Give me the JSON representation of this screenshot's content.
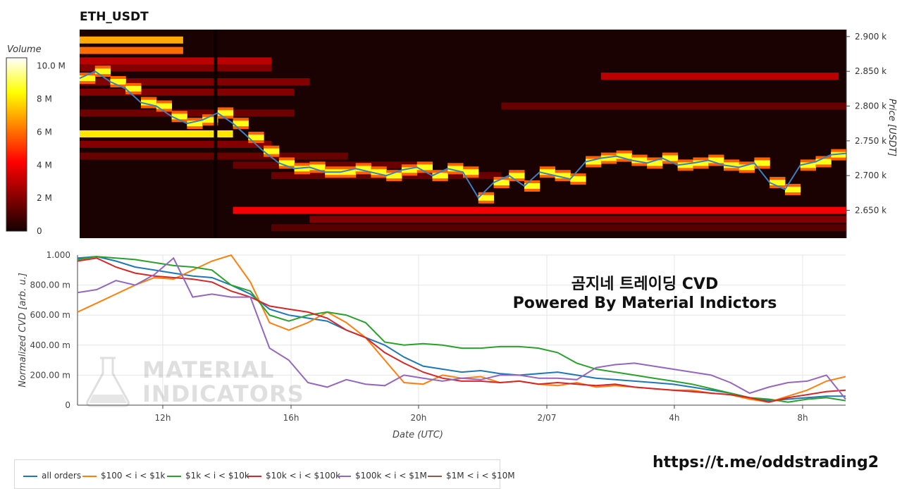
{
  "title": "ETH_USDT",
  "colorbar": {
    "title": "Volume",
    "ticks": [
      "10.0 M",
      "8 M",
      "6 M",
      "4 M",
      "2 M",
      "0"
    ]
  },
  "overlay": {
    "title": "곰지네 트레이딩 CVD",
    "subtitle": "Powered By Material Indictors"
  },
  "watermark": {
    "line1": "MATERIAL",
    "line2": "INDICATORS"
  },
  "link": "https://t.me/oddstrading2",
  "legend": [
    {
      "label": "all orders",
      "color": "#1f77b4"
    },
    {
      "label": "$100 < i < $1k",
      "color": "#ff7f0e"
    },
    {
      "label": "$1k < i < $10k",
      "color": "#2ca02c"
    },
    {
      "label": "$10k < i < $100k",
      "color": "#d62728"
    },
    {
      "label": "$100k < i < $1M",
      "color": "#9467bd"
    },
    {
      "label": "$1M < i < $10M",
      "color": "#8c564b"
    }
  ],
  "chart_data": [
    {
      "type": "heatmap",
      "title": "ETH_USDT",
      "ylabel": "Price [USDT]",
      "ylim": [
        2610,
        2910
      ],
      "y_ticks": [
        "2.900 k",
        "2.850 k",
        "2.800 k",
        "2.750 k",
        "2.700 k",
        "2.650 k"
      ],
      "colorscale": "hot",
      "zlim": [
        0,
        10.5
      ],
      "zunit": "M",
      "bands": [
        {
          "price": 2895,
          "from": 0.0,
          "to": 0.135,
          "level": 7
        },
        {
          "price": 2880,
          "from": 0.0,
          "to": 0.135,
          "level": 6
        },
        {
          "price": 2865,
          "from": 0.0,
          "to": 0.25,
          "level": 3
        },
        {
          "price": 2855,
          "from": 0.0,
          "to": 0.25,
          "level": 2
        },
        {
          "price": 2843,
          "from": 0.68,
          "to": 0.99,
          "level": 3
        },
        {
          "price": 2835,
          "from": 0.0,
          "to": 0.3,
          "level": 2
        },
        {
          "price": 2820,
          "from": 0.0,
          "to": 0.28,
          "level": 2
        },
        {
          "price": 2800,
          "from": 0.55,
          "to": 1.0,
          "level": 1.5
        },
        {
          "price": 2790,
          "from": 0.0,
          "to": 0.28,
          "level": 1.6
        },
        {
          "price": 2760,
          "from": 0.0,
          "to": 0.2,
          "level": 8
        },
        {
          "price": 2745,
          "from": 0.0,
          "to": 0.25,
          "level": 2
        },
        {
          "price": 2728,
          "from": 0.0,
          "to": 0.35,
          "level": 1.5
        },
        {
          "price": 2715,
          "from": 0.2,
          "to": 0.45,
          "level": 1.5
        },
        {
          "price": 2700,
          "from": 0.25,
          "to": 0.55,
          "level": 1.5
        },
        {
          "price": 2650,
          "from": 0.2,
          "to": 1.0,
          "level": 4
        },
        {
          "price": 2637,
          "from": 0.3,
          "to": 1.0,
          "level": 2
        },
        {
          "price": 2625,
          "from": 0.25,
          "to": 1.0,
          "level": 1.2
        }
      ],
      "series": [
        {
          "name": "price",
          "x_frac": [
            0.0,
            0.02,
            0.04,
            0.06,
            0.08,
            0.1,
            0.12,
            0.14,
            0.16,
            0.18,
            0.2,
            0.22,
            0.24,
            0.26,
            0.28,
            0.3,
            0.32,
            0.34,
            0.36,
            0.38,
            0.4,
            0.42,
            0.44,
            0.46,
            0.48,
            0.5,
            0.52,
            0.54,
            0.56,
            0.58,
            0.6,
            0.62,
            0.64,
            0.66,
            0.68,
            0.7,
            0.72,
            0.74,
            0.76,
            0.78,
            0.8,
            0.82,
            0.84,
            0.86,
            0.88,
            0.9,
            0.92,
            0.94,
            0.96,
            0.98,
            1.0
          ],
          "values": [
            2840,
            2850,
            2835,
            2825,
            2805,
            2800,
            2785,
            2775,
            2780,
            2790,
            2775,
            2755,
            2735,
            2718,
            2710,
            2712,
            2705,
            2705,
            2710,
            2705,
            2700,
            2708,
            2712,
            2700,
            2710,
            2705,
            2668,
            2690,
            2700,
            2685,
            2705,
            2700,
            2695,
            2720,
            2725,
            2728,
            2722,
            2718,
            2725,
            2715,
            2718,
            2722,
            2715,
            2712,
            2718,
            2690,
            2680,
            2715,
            2720,
            2730,
            2732
          ]
        }
      ]
    },
    {
      "type": "line",
      "xlabel": "Date (UTC)",
      "ylabel": "Normalized CVD [arb. u.]",
      "ylim": [
        0,
        1.0
      ],
      "y_ticks": [
        "0",
        "200.00 m",
        "400.00 m",
        "600.00 m",
        "800.00 m",
        "1.000"
      ],
      "x_ticks": [
        "12h",
        "16h",
        "20h",
        "2/07",
        "4h",
        "8h"
      ],
      "x_tick_frac": [
        0.111,
        0.278,
        0.444,
        0.611,
        0.777,
        0.944
      ],
      "x_frac": [
        0.0,
        0.025,
        0.05,
        0.075,
        0.1,
        0.125,
        0.15,
        0.175,
        0.2,
        0.225,
        0.25,
        0.275,
        0.3,
        0.325,
        0.35,
        0.375,
        0.4,
        0.425,
        0.45,
        0.475,
        0.5,
        0.525,
        0.55,
        0.575,
        0.6,
        0.625,
        0.65,
        0.675,
        0.7,
        0.725,
        0.75,
        0.775,
        0.8,
        0.825,
        0.85,
        0.875,
        0.9,
        0.925,
        0.95,
        0.975,
        1.0
      ],
      "series": [
        {
          "name": "all orders",
          "values": [
            0.98,
            0.99,
            0.96,
            0.92,
            0.9,
            0.88,
            0.86,
            0.85,
            0.8,
            0.74,
            0.64,
            0.6,
            0.58,
            0.56,
            0.5,
            0.45,
            0.4,
            0.32,
            0.26,
            0.24,
            0.22,
            0.23,
            0.21,
            0.2,
            0.21,
            0.22,
            0.2,
            0.18,
            0.17,
            0.16,
            0.15,
            0.14,
            0.12,
            0.1,
            0.08,
            0.05,
            0.03,
            0.04,
            0.05,
            0.06,
            0.06
          ]
        },
        {
          "name": "$100 < i < $1k",
          "values": [
            0.62,
            0.68,
            0.74,
            0.8,
            0.85,
            0.84,
            0.9,
            0.96,
            1.0,
            0.82,
            0.55,
            0.5,
            0.55,
            0.62,
            0.55,
            0.45,
            0.3,
            0.15,
            0.14,
            0.2,
            0.18,
            0.19,
            0.15,
            0.16,
            0.14,
            0.13,
            0.15,
            0.12,
            0.13,
            0.12,
            0.11,
            0.1,
            0.1,
            0.08,
            0.07,
            0.04,
            0.02,
            0.06,
            0.1,
            0.16,
            0.19
          ]
        },
        {
          "name": "$1k < i < $10k",
          "values": [
            0.97,
            0.99,
            0.98,
            0.97,
            0.95,
            0.93,
            0.92,
            0.9,
            0.8,
            0.76,
            0.6,
            0.56,
            0.6,
            0.62,
            0.6,
            0.55,
            0.42,
            0.4,
            0.41,
            0.4,
            0.38,
            0.38,
            0.39,
            0.39,
            0.38,
            0.35,
            0.28,
            0.24,
            0.22,
            0.2,
            0.18,
            0.16,
            0.14,
            0.11,
            0.08,
            0.05,
            0.04,
            0.02,
            0.04,
            0.05,
            0.03
          ]
        },
        {
          "name": "$10k < i < $100k",
          "values": [
            0.96,
            0.98,
            0.92,
            0.88,
            0.86,
            0.85,
            0.84,
            0.82,
            0.76,
            0.72,
            0.66,
            0.64,
            0.62,
            0.58,
            0.5,
            0.45,
            0.35,
            0.28,
            0.22,
            0.18,
            0.16,
            0.16,
            0.15,
            0.16,
            0.14,
            0.15,
            0.14,
            0.13,
            0.14,
            0.12,
            0.11,
            0.1,
            0.09,
            0.08,
            0.07,
            0.05,
            0.02,
            0.05,
            0.07,
            0.09,
            0.1
          ]
        },
        {
          "name": "$100k < i < $1M",
          "values": [
            0.75,
            0.77,
            0.83,
            0.8,
            0.87,
            0.98,
            0.72,
            0.74,
            0.72,
            0.72,
            0.38,
            0.3,
            0.15,
            0.12,
            0.17,
            0.14,
            0.13,
            0.2,
            0.18,
            0.16,
            0.18,
            0.17,
            0.2,
            0.2,
            0.18,
            0.18,
            0.17,
            0.25,
            0.27,
            0.28,
            0.26,
            0.24,
            0.22,
            0.2,
            0.15,
            0.08,
            0.12,
            0.15,
            0.16,
            0.2,
            0.04
          ]
        },
        {
          "name": "$1M < i < $10M",
          "values": []
        }
      ]
    }
  ]
}
